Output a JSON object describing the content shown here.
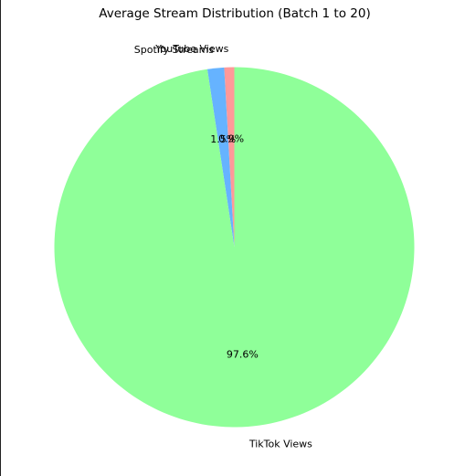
{
  "chart_data": {
    "type": "pie",
    "title": "Average Stream Distribution (Batch 1 to 20)",
    "slices": [
      {
        "label": "YouTube Views",
        "value": 0.9,
        "pct_text": "0.9%",
        "color": "#ff9999"
      },
      {
        "label": "Spotify Streams",
        "value": 1.5,
        "pct_text": "1.5%",
        "color": "#66b3ff"
      },
      {
        "label": "TikTok Views",
        "value": 97.6,
        "pct_text": "97.6%",
        "color": "#8fff99"
      }
    ],
    "start_angle_deg": 90,
    "direction": "counterclockwise"
  }
}
